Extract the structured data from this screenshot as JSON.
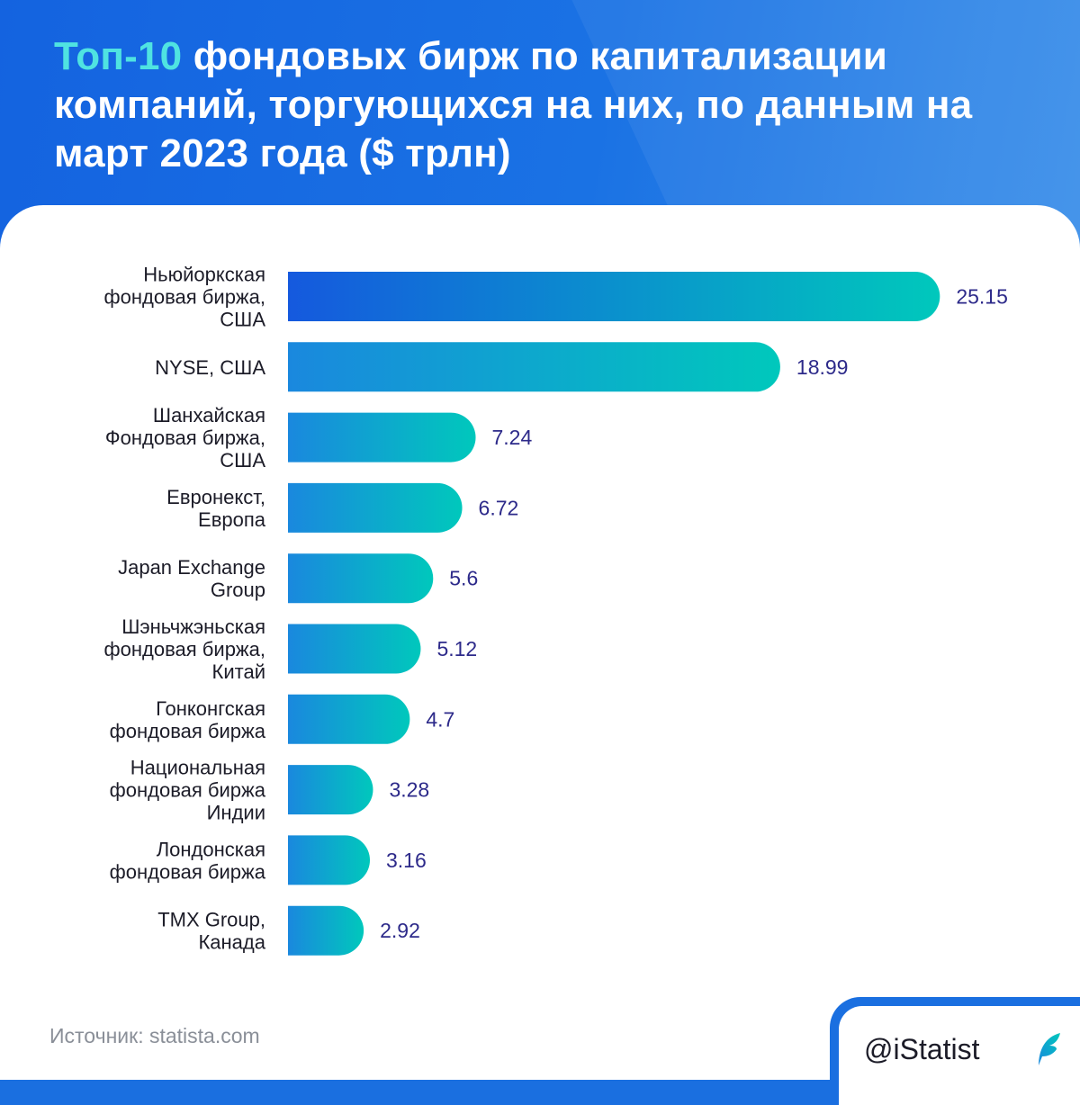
{
  "header": {
    "title_accent": "Топ-10",
    "title_rest": " фондовых бирж по капитализации компаний, торгующихся на них, по данным на март 2023 года ($ трлн)"
  },
  "chart_data": {
    "type": "bar",
    "orientation": "horizontal",
    "title": "Топ-10 фондовых бирж по капитализации компаний, торгующихся на них, по данным на март 2023 года ($ трлн)",
    "categories": [
      [
        "Ньюйоркская",
        "фондовая биржа,",
        "США"
      ],
      [
        "NYSE, США"
      ],
      [
        "Шанхайская",
        "Фондовая биржа,",
        "США"
      ],
      [
        "Евронекст,",
        "Европа"
      ],
      [
        "Japan Exchange",
        "Group"
      ],
      [
        "Шэньчжэньская",
        "фондовая биржа,",
        "Китай"
      ],
      [
        "Гонконгская",
        "фондовая биржа"
      ],
      [
        "Национальная",
        "фондовая биржа",
        "Индии"
      ],
      [
        "Лондонская",
        "фондовая биржа"
      ],
      [
        "TMX Group,",
        "Канада"
      ]
    ],
    "values": [
      25.15,
      18.99,
      7.24,
      6.72,
      5.6,
      5.12,
      4.7,
      3.28,
      3.16,
      2.92
    ],
    "value_labels": [
      "25.15",
      "18.99",
      "7.24",
      "6.72",
      "5.6",
      "5.12",
      "4.7",
      "3.28",
      "3.16",
      "2.92"
    ],
    "grid": false,
    "legend": "none",
    "colors": {
      "bar_start_top": "#1559de",
      "bar_start": "#1a88de",
      "bar_end": "#00c8bc",
      "value_text": "#2d2a8a",
      "accent": "#4fe3e1"
    }
  },
  "footer": {
    "source": "Источник: statista.com",
    "brand": "@iStatist",
    "brand_icon": "feather-icon"
  }
}
